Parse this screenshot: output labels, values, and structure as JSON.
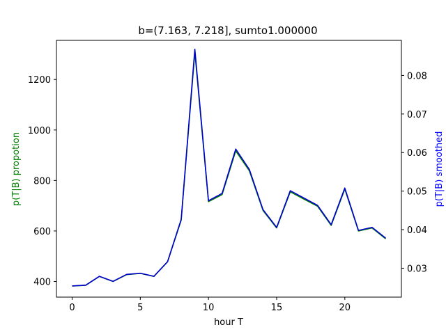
{
  "chart_data": {
    "type": "line",
    "title": "b=(7.163, 7.218], sumto1.000000",
    "xlabel": "hour T",
    "ylabel_left": "p(T|B) propotion",
    "ylabel_right": "p(T|B) smoothed",
    "ylabel_left_color": "#008000",
    "ylabel_right_color": "#0000ff",
    "xlim": [
      -1.15,
      24.15
    ],
    "ylim_left": [
      338,
      1355
    ],
    "ylim_right": [
      0.0225,
      0.0891
    ],
    "xticks": [
      0,
      5,
      10,
      15,
      20
    ],
    "yticks_left": [
      400,
      600,
      800,
      1000,
      1200
    ],
    "yticks_right": [
      0.03,
      0.04,
      0.05,
      0.06,
      0.07,
      0.08
    ],
    "grid": false,
    "series": [
      {
        "axis": "left",
        "color": "#008000",
        "x": [
          0,
          1,
          2,
          3,
          4,
          5,
          6,
          7,
          8,
          9,
          10,
          11,
          12,
          13,
          14,
          15,
          16,
          17,
          18,
          19,
          20,
          21,
          22,
          23
        ],
        "values": [
          382,
          385,
          420,
          400,
          427,
          432,
          420,
          478,
          643,
          1308,
          716,
          744,
          917,
          838,
          681,
          612,
          755,
          726,
          698,
          622,
          766,
          600,
          612,
          569
        ]
      },
      {
        "axis": "right",
        "color": "#0000cc",
        "x": [
          0,
          1,
          2,
          3,
          4,
          5,
          6,
          7,
          8,
          9,
          10,
          11,
          12,
          13,
          14,
          15,
          16,
          17,
          18,
          19,
          20,
          21,
          22,
          23
        ],
        "values": [
          0.0254,
          0.0256,
          0.0279,
          0.0266,
          0.0284,
          0.0287,
          0.0279,
          0.0317,
          0.0427,
          0.0868,
          0.0475,
          0.0494,
          0.0609,
          0.0556,
          0.0452,
          0.0406,
          0.0501,
          0.0482,
          0.0463,
          0.0413,
          0.0508,
          0.0398,
          0.0406,
          0.0378
        ]
      }
    ]
  }
}
